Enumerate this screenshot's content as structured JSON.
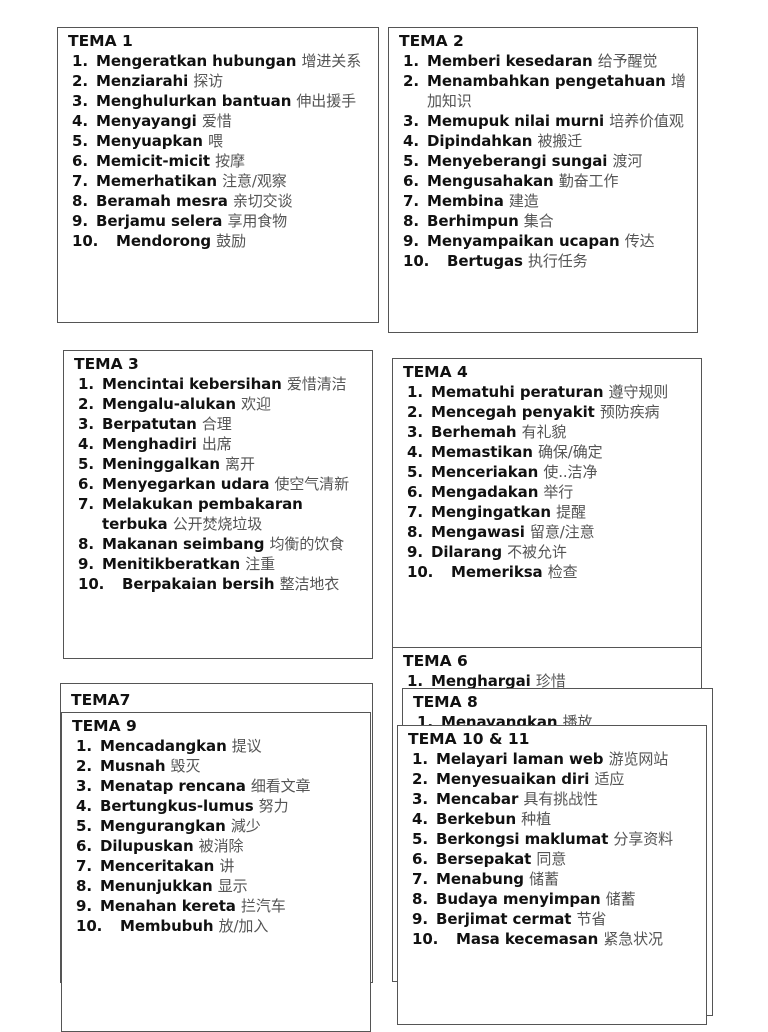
{
  "boxes": [
    {
      "id": "tema1",
      "title": "TEMA 1",
      "items": [
        {
          "ms": "Mengeratkan hubungan",
          "zh": "增进关系"
        },
        {
          "ms": "Menziarahi",
          "zh": "探访"
        },
        {
          "ms": "Menghulurkan bantuan",
          "zh": "伸出援手"
        },
        {
          "ms": "Menyayangi",
          "zh": "爱惜"
        },
        {
          "ms": "Menyuapkan",
          "zh": "喂"
        },
        {
          "ms": "Memicit-micit",
          "zh": "按摩"
        },
        {
          "ms": "Memerhatikan",
          "zh": "注意/观察"
        },
        {
          "ms": "Beramah mesra",
          "zh": "亲切交谈"
        },
        {
          "ms": "Berjamu selera",
          "zh": "享用食物"
        },
        {
          "ms": "Mendorong",
          "zh": "鼓励"
        }
      ]
    },
    {
      "id": "tema2",
      "title": "TEMA 2",
      "items": [
        {
          "ms": "Memberi kesedaran",
          "zh": "给予醒觉"
        },
        {
          "ms": "Menambahkan pengetahuan",
          "zh": "增加知识"
        },
        {
          "ms": "Memupuk nilai murni",
          "zh": "培养价值观"
        },
        {
          "ms": "Dipindahkan",
          "zh": "被搬迁"
        },
        {
          "ms": "Menyeberangi sungai",
          "zh": "渡河"
        },
        {
          "ms": "Mengusahakan",
          "zh": "勤奋工作"
        },
        {
          "ms": "Membina",
          "zh": "建造"
        },
        {
          "ms": "Berhimpun",
          "zh": "集合"
        },
        {
          "ms": "Menyampaikan ucapan",
          "zh": "传达"
        },
        {
          "ms": "Bertugas",
          "zh": "执行任务"
        }
      ]
    },
    {
      "id": "tema3",
      "title": "TEMA 3",
      "items": [
        {
          "ms": "Mencintai kebersihan",
          "zh": "爱惜清洁"
        },
        {
          "ms": "Mengalu-alukan",
          "zh": "欢迎"
        },
        {
          "ms": "Berpatutan",
          "zh": "合理"
        },
        {
          "ms": "Menghadiri",
          "zh": "出席"
        },
        {
          "ms": "Meninggalkan",
          "zh": "离开"
        },
        {
          "ms": "Menyegarkan udara",
          "zh": "使空气清新"
        },
        {
          "ms": "Melakukan pembakaran terbuka",
          "zh": "公开焚烧垃圾"
        },
        {
          "ms": "Makanan seimbang",
          "zh": "均衡的饮食"
        },
        {
          "ms": "Menitikberatkan",
          "zh": "注重"
        },
        {
          "ms": "Berpakaian bersih",
          "zh": "整洁地衣"
        }
      ]
    },
    {
      "id": "tema4",
      "title": "TEMA 4",
      "items": [
        {
          "ms": "Mematuhi peraturan",
          "zh": "遵守规则"
        },
        {
          "ms": "Mencegah penyakit",
          "zh": "预防疾病"
        },
        {
          "ms": "Berhemah",
          "zh": "有礼貌"
        },
        {
          "ms": "Memastikan",
          "zh": "确保/确定"
        },
        {
          "ms": "Menceriakan",
          "zh": "使..洁净"
        },
        {
          "ms": "Mengadakan",
          "zh": "举行"
        },
        {
          "ms": "Mengingatkan",
          "zh": "提醒"
        },
        {
          "ms": "Mengawasi",
          "zh": "留意/注意"
        },
        {
          "ms": "Dilarang",
          "zh": "不被允许"
        },
        {
          "ms": "Memeriksa",
          "zh": "检查"
        }
      ]
    },
    {
      "id": "tema6",
      "title": "TEMA 6",
      "items": [
        {
          "ms": "Menghargai",
          "zh": "珍惜"
        }
      ]
    },
    {
      "id": "tema8",
      "title": "TEMA 8",
      "items": [
        {
          "ms": "Menayangkan",
          "zh": "播放"
        }
      ]
    },
    {
      "id": "tema10-11",
      "title": "TEMA 10 & 11",
      "items": [
        {
          "ms": "Melayari laman web",
          "zh": "游览网站"
        },
        {
          "ms": "Menyesuaikan diri",
          "zh": "适应"
        },
        {
          "ms": "Mencabar",
          "zh": "具有挑战性"
        },
        {
          "ms": "Berkebun",
          "zh": "种植"
        },
        {
          "ms": "Berkongsi maklumat",
          "zh": "分享资料"
        },
        {
          "ms": "Bersepakat",
          "zh": "同意"
        },
        {
          "ms": "Menabung",
          "zh": "储蓄"
        },
        {
          "ms": "Budaya menyimpan",
          "zh": "储蓄"
        },
        {
          "ms": "Berjimat cermat",
          "zh": "节省"
        },
        {
          "ms": "Masa kecemasan",
          "zh": "紧急状况"
        }
      ]
    },
    {
      "id": "tema7",
      "title": "TEMA7",
      "items": []
    },
    {
      "id": "tema9",
      "title": "TEMA 9",
      "items": [
        {
          "ms": "Mencadangkan",
          "zh": "提议"
        },
        {
          "ms": "Musnah",
          "zh": "毁灭"
        },
        {
          "ms": "Menatap  rencana",
          "zh": "细看文章"
        },
        {
          "ms": "Bertungkus-lumus",
          "zh": "努力"
        },
        {
          "ms": "Mengurangkan",
          "zh": "減少"
        },
        {
          "ms": "Dilupuskan",
          "zh": "被消除"
        },
        {
          "ms": "Menceritakan",
          "zh": "讲"
        },
        {
          "ms": "Menunjukkan",
          "zh": "显示"
        },
        {
          "ms": "Menahan kereta",
          "zh": "拦汽车"
        },
        {
          "ms": "Membubuh",
          "zh": "放/加入"
        }
      ]
    }
  ]
}
